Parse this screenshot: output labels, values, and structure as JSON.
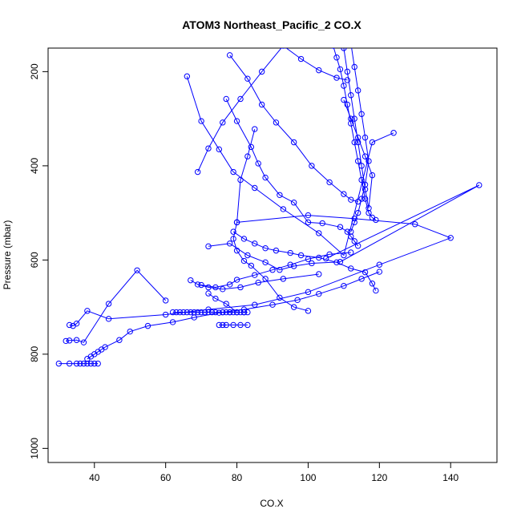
{
  "chart_data": {
    "type": "line",
    "title": "ATOM3 Northeast_Pacific_2 CO.X",
    "xlabel": "CO.X",
    "ylabel": "Pressure (mbar)",
    "xlim": [
      27,
      153
    ],
    "ylim": [
      1030,
      150
    ],
    "y_reversed": true,
    "x_ticks": [
      40,
      60,
      80,
      100,
      120,
      140
    ],
    "y_ticks": [
      200,
      400,
      600,
      800,
      1000
    ],
    "grid": false,
    "legend": "none",
    "line_color": "#0000ff",
    "marker": "open-circle",
    "series": [
      {
        "x": [
          30,
          33,
          35,
          36,
          37,
          38,
          39,
          40,
          41
        ],
        "y": [
          820,
          820,
          820,
          820,
          820,
          820,
          820,
          820,
          820
        ]
      },
      {
        "x": [
          38,
          39,
          40,
          41,
          42,
          43,
          47,
          50,
          55,
          62,
          68,
          75,
          82,
          90,
          97,
          103,
          110,
          115,
          120
        ],
        "y": [
          810,
          805,
          800,
          795,
          790,
          785,
          770,
          752,
          740,
          732,
          722,
          712,
          705,
          695,
          685,
          672,
          655,
          640,
          625
        ]
      },
      {
        "x": [
          32,
          33,
          35,
          37,
          44,
          52,
          60
        ],
        "y": [
          772,
          771,
          770,
          775,
          693,
          622,
          686
        ]
      },
      {
        "x": [
          33,
          34,
          35,
          38,
          44,
          60,
          72,
          85,
          100,
          120,
          140,
          130,
          113,
          100,
          80
        ],
        "y": [
          738,
          740,
          735,
          708,
          725,
          716,
          705,
          695,
          668,
          610,
          553,
          524,
          512,
          505,
          520
        ]
      },
      {
        "x": [
          62,
          63,
          64,
          65,
          66,
          67,
          68,
          69,
          70,
          71,
          72,
          73,
          74,
          76,
          78
        ],
        "y": [
          711,
          711,
          711,
          711,
          711,
          711,
          711,
          711,
          711,
          711,
          711,
          711,
          711,
          711,
          711
        ]
      },
      {
        "x": [
          75,
          76,
          77,
          79,
          81,
          83
        ],
        "y": [
          738,
          738,
          738,
          738,
          738,
          738
        ]
      },
      {
        "x": [
          76,
          77,
          78,
          79,
          80,
          81,
          82,
          83,
          82,
          80,
          77,
          74,
          72
        ],
        "y": [
          711,
          711,
          711,
          711,
          711,
          711,
          711,
          711,
          711,
          711,
          693,
          682,
          671
        ]
      },
      {
        "x": [
          67,
          69,
          72,
          76,
          81,
          86,
          93,
          103
        ],
        "y": [
          643,
          652,
          658,
          662,
          658,
          648,
          640,
          630
        ]
      },
      {
        "x": [
          70,
          74,
          78,
          80,
          85,
          90,
          95,
          100,
          106,
          112
        ],
        "y": [
          653,
          658,
          652,
          642,
          632,
          621,
          610,
          598,
          588,
          584
        ]
      },
      {
        "x": [
          72,
          78,
          83,
          88,
          92,
          96,
          101,
          109,
          148,
          105
        ],
        "y": [
          571,
          565,
          590,
          605,
          621,
          613,
          607,
          604,
          441,
          597
        ]
      },
      {
        "x": [
          66,
          70,
          75,
          79,
          85,
          93,
          103,
          110,
          118,
          124
        ],
        "y": [
          210,
          305,
          365,
          413,
          447,
          492,
          543,
          590,
          350,
          330
        ]
      },
      {
        "x": [
          69,
          72,
          76,
          81,
          87,
          93,
          98,
          103,
          108,
          111
        ],
        "y": [
          413,
          363,
          308,
          258,
          200,
          145,
          173,
          197,
          213,
          218
        ]
      },
      {
        "x": [
          78,
          83,
          87,
          91,
          96,
          101,
          106,
          110,
          112,
          114
        ],
        "y": [
          165,
          215,
          270,
          308,
          350,
          400,
          435,
          460,
          472,
          476
        ]
      },
      {
        "x": [
          77,
          80,
          84,
          86,
          88,
          92,
          96,
          100,
          104,
          109,
          111,
          112,
          113,
          114
        ],
        "y": [
          258,
          305,
          360,
          395,
          425,
          462,
          478,
          520,
          522,
          530,
          540,
          550,
          560,
          570
        ]
      },
      {
        "x": [
          85,
          83,
          81,
          80,
          79,
          80,
          82,
          84,
          88,
          92,
          96,
          100
        ],
        "y": [
          322,
          380,
          430,
          520,
          555,
          580,
          602,
          612,
          640,
          680,
          700,
          708
        ]
      },
      {
        "x": [
          79,
          82,
          85,
          88,
          91,
          95,
          98,
          103,
          108,
          112,
          116,
          118,
          119
        ],
        "y": [
          540,
          555,
          565,
          575,
          580,
          585,
          590,
          595,
          605,
          618,
          626,
          650,
          665
        ]
      },
      {
        "x": [
          107,
          108,
          109,
          110,
          111,
          112,
          113,
          114,
          115,
          116,
          117,
          118,
          119
        ],
        "y": [
          145,
          170,
          195,
          230,
          270,
          310,
          350,
          390,
          430,
          470,
          500,
          510,
          515
        ]
      },
      {
        "x": [
          110,
          111,
          112,
          113,
          114,
          115,
          116,
          117,
          118,
          116,
          114,
          112,
          110
        ],
        "y": [
          150,
          200,
          250,
          300,
          350,
          400,
          450,
          490,
          420,
          380,
          340,
          300,
          260
        ]
      },
      {
        "x": [
          112,
          113,
          114,
          115,
          116,
          117,
          116,
          115,
          114,
          113,
          112
        ],
        "y": [
          140,
          190,
          240,
          290,
          340,
          390,
          440,
          470,
          500,
          520,
          540
        ]
      }
    ]
  }
}
